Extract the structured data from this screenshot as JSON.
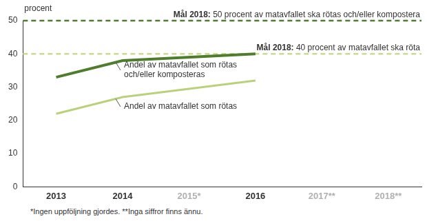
{
  "chart_data": {
    "type": "line",
    "y_label": "procent",
    "categories": [
      "2013",
      "2014",
      "2015*",
      "2016",
      "2017**",
      "2018**"
    ],
    "series": [
      {
        "name": "Andel av matavfallet som rötas och/eller komposteras",
        "color": "#4e7d2c",
        "values": [
          33,
          38,
          null,
          40,
          null,
          null
        ]
      },
      {
        "name": "Andel av matavfallet som rötas",
        "color": "#b9d27a",
        "values": [
          22,
          27,
          null,
          32,
          null,
          null
        ]
      }
    ],
    "targets": [
      {
        "value": 50,
        "label": "Mål 2018:",
        "text": "50 procent av matavfallet ska rötas och/eller kompostera",
        "color": "#4e7d2c",
        "line_style": "dashed"
      },
      {
        "value": 40,
        "label": "Mål 2018:",
        "text": "40 procent av matavfallet ska röta",
        "color": "#c8dc8c",
        "line_style": "dashed"
      }
    ],
    "ylim": [
      0,
      50
    ],
    "yticks": [
      0,
      10,
      20,
      30,
      40,
      50
    ],
    "grid": false,
    "footnote": "*Ingen uppföljning gjordes. **Inga siffror finns ännu."
  }
}
